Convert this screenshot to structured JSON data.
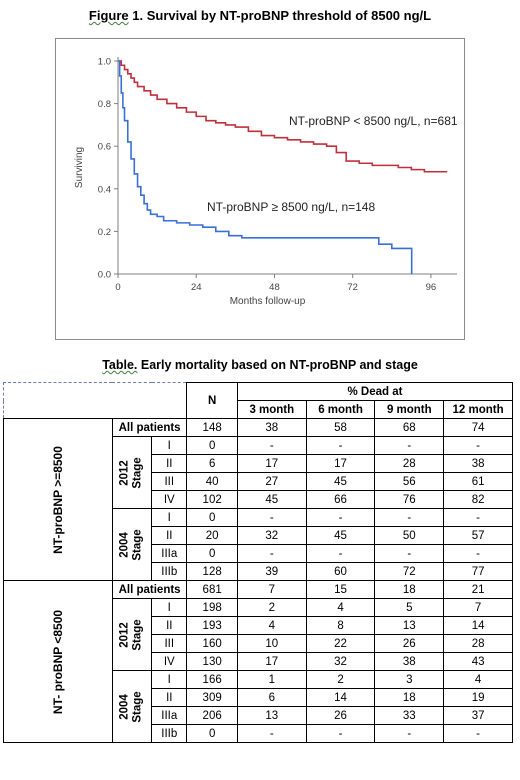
{
  "figure": {
    "title_prefix": "Figure",
    "title_rest": " 1. Survival by NT-proBNP threshold of 8500 ng/L"
  },
  "chart_data": {
    "type": "line",
    "subtype": "kaplan-meier step",
    "xlabel": "Months follow-up",
    "ylabel": "Surviving",
    "xlim": [
      0,
      104
    ],
    "ylim": [
      0,
      1.0
    ],
    "x_ticks": [
      0,
      24,
      48,
      72,
      96
    ],
    "y_ticks": [
      "0.0",
      "0.2",
      "0.4",
      "0.6",
      "0.8",
      "1.0"
    ],
    "grid": false,
    "series": [
      {
        "name": "NT-proBNP < 8500 ng/L, n=681",
        "color": "#c0303c",
        "x": [
          0,
          1,
          2,
          3,
          4,
          5,
          6,
          8,
          10,
          12,
          15,
          18,
          21,
          24,
          27,
          30,
          33,
          36,
          40,
          44,
          48,
          52,
          56,
          60,
          64,
          67,
          70,
          74,
          78,
          82,
          86,
          90,
          94,
          98,
          101
        ],
        "y": [
          1.0,
          0.98,
          0.96,
          0.94,
          0.92,
          0.9,
          0.88,
          0.86,
          0.84,
          0.82,
          0.8,
          0.78,
          0.76,
          0.74,
          0.72,
          0.71,
          0.7,
          0.69,
          0.67,
          0.65,
          0.64,
          0.63,
          0.62,
          0.61,
          0.6,
          0.57,
          0.53,
          0.52,
          0.51,
          0.51,
          0.5,
          0.49,
          0.48,
          0.48,
          0.48
        ]
      },
      {
        "name": "NT-proBNP ≥ 8500 ng/L, n=148",
        "color": "#3a6fd8",
        "x": [
          0,
          0.5,
          1,
          1.5,
          2,
          3,
          4,
          5,
          6,
          7,
          8,
          9,
          10,
          12,
          14,
          18,
          22,
          26,
          30,
          34,
          38,
          44,
          50,
          56,
          62,
          68,
          74,
          80,
          84,
          89,
          90,
          90.1
        ],
        "y": [
          1.0,
          0.93,
          0.85,
          0.78,
          0.72,
          0.62,
          0.54,
          0.47,
          0.41,
          0.37,
          0.33,
          0.3,
          0.28,
          0.27,
          0.25,
          0.24,
          0.23,
          0.22,
          0.2,
          0.18,
          0.17,
          0.17,
          0.17,
          0.17,
          0.17,
          0.17,
          0.17,
          0.14,
          0.12,
          0.12,
          0.12,
          0.0
        ]
      }
    ]
  },
  "table": {
    "title_prefix": "Table.",
    "title_rest": " Early mortality based on NT-proBNP and stage",
    "header": {
      "n": "N",
      "pct_dead": "% Dead at",
      "cols": [
        "3 month",
        "6 month",
        "9 month",
        "12 month"
      ]
    },
    "groups": [
      {
        "label": "NT-proBNP >=8500",
        "all_label": "All patients",
        "all": [
          "148",
          "38",
          "58",
          "68",
          "74"
        ],
        "stages": [
          {
            "year": "2012",
            "word": "Stage",
            "rows": [
              {
                "stage": "I",
                "vals": [
                  "0",
                  "-",
                  "-",
                  "-",
                  "-"
                ]
              },
              {
                "stage": "II",
                "vals": [
                  "6",
                  "17",
                  "17",
                  "28",
                  "38"
                ]
              },
              {
                "stage": "III",
                "vals": [
                  "40",
                  "27",
                  "45",
                  "56",
                  "61"
                ]
              },
              {
                "stage": "IV",
                "vals": [
                  "102",
                  "45",
                  "66",
                  "76",
                  "82"
                ]
              }
            ]
          },
          {
            "year": "2004",
            "word": "Stage",
            "rows": [
              {
                "stage": "I",
                "vals": [
                  "0",
                  "-",
                  "-",
                  "-",
                  "-"
                ]
              },
              {
                "stage": "II",
                "vals": [
                  "20",
                  "32",
                  "45",
                  "50",
                  "57"
                ]
              },
              {
                "stage": "IIIa",
                "vals": [
                  "0",
                  "-",
                  "-",
                  "-",
                  "-"
                ]
              },
              {
                "stage": "IIIb",
                "vals": [
                  "128",
                  "39",
                  "60",
                  "72",
                  "77"
                ]
              }
            ]
          }
        ]
      },
      {
        "label": "NT- proBNP <8500",
        "all_label": "All patients",
        "all": [
          "681",
          "7",
          "15",
          "18",
          "21"
        ],
        "stages": [
          {
            "year": "2012",
            "word": "Stage",
            "rows": [
              {
                "stage": "I",
                "vals": [
                  "198",
                  "2",
                  "4",
                  "5",
                  "7"
                ]
              },
              {
                "stage": "II",
                "vals": [
                  "193",
                  "4",
                  "8",
                  "13",
                  "14"
                ]
              },
              {
                "stage": "III",
                "vals": [
                  "160",
                  "10",
                  "22",
                  "26",
                  "28"
                ]
              },
              {
                "stage": "IV",
                "vals": [
                  "130",
                  "17",
                  "32",
                  "38",
                  "43"
                ]
              }
            ]
          },
          {
            "year": "2004",
            "word": "Stage",
            "rows": [
              {
                "stage": "I",
                "vals": [
                  "166",
                  "1",
                  "2",
                  "3",
                  "4"
                ]
              },
              {
                "stage": "II",
                "vals": [
                  "309",
                  "6",
                  "14",
                  "18",
                  "19"
                ]
              },
              {
                "stage": "IIIa",
                "vals": [
                  "206",
                  "13",
                  "26",
                  "33",
                  "37"
                ]
              },
              {
                "stage": "IIIb",
                "vals": [
                  "0",
                  "-",
                  "-",
                  "-",
                  "-"
                ]
              }
            ]
          }
        ]
      }
    ]
  }
}
